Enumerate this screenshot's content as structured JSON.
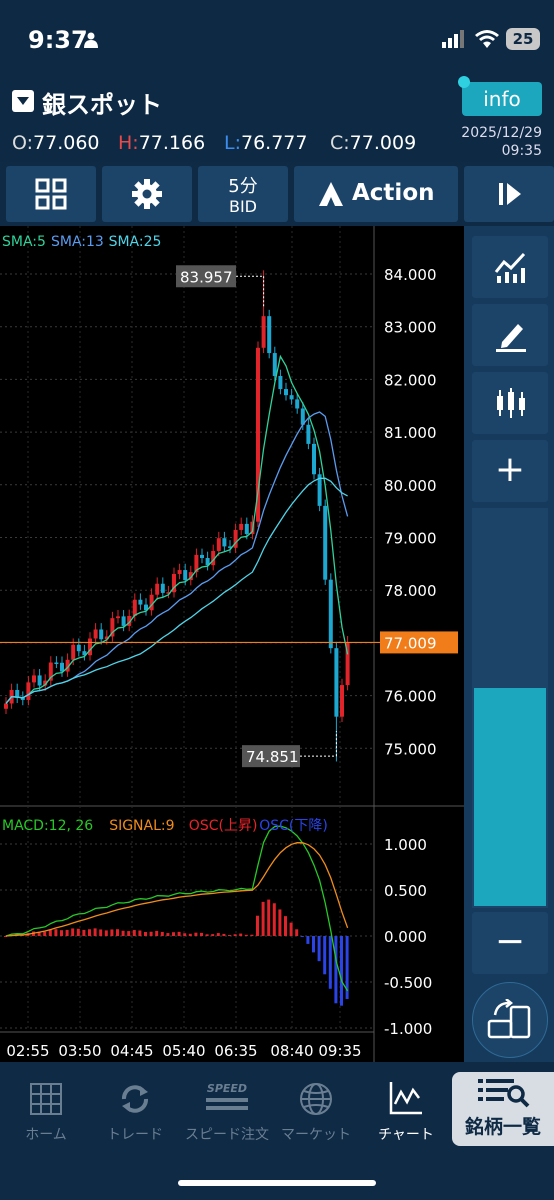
{
  "status_bar": {
    "time": "9:37",
    "battery": "25"
  },
  "header": {
    "symbol": "銀スポット",
    "info_label": "info",
    "ohlc": {
      "o_label": "O:",
      "o": "77.060",
      "h_label": "H:",
      "h": "77.166",
      "l_label": "L:",
      "l": "76.777",
      "c_label": "C:",
      "c": "77.009"
    },
    "date": "2025/12/29",
    "time": "09:35"
  },
  "toolbar": {
    "interval": "5分",
    "price_type": "BID",
    "action_label": "Action"
  },
  "chart": {
    "sma_labels": [
      {
        "text": "SMA:5",
        "color": "#2fd29a"
      },
      {
        "text": "SMA:13",
        "color": "#5a9cf0"
      },
      {
        "text": "SMA:25",
        "color": "#4fd4e8"
      }
    ],
    "price_axis": [
      "84.000",
      "83.000",
      "82.000",
      "81.000",
      "80.000",
      "79.000",
      "78.000",
      "77.000",
      "76.000",
      "75.000"
    ],
    "high_marker": "83.957",
    "low_marker": "74.851",
    "current_price": "77.009",
    "current_price_color": "#f07c1a",
    "macd_labels": [
      {
        "text": "MACD:12, 26",
        "color": "#26c926"
      },
      {
        "text": "SIGNAL:9",
        "color": "#f08c1a"
      },
      {
        "text": "OSC(上昇)",
        "color": "#e8242a"
      },
      {
        "text": "OSC(下降)",
        "color": "#2a44e8"
      }
    ],
    "macd_axis": [
      "1.000",
      "0.500",
      "0.000",
      "-0.500",
      "-1.000"
    ],
    "time_axis": [
      "02:55",
      "03:50",
      "04:45",
      "05:40",
      "06:35",
      "08:40",
      "09:35"
    ],
    "up_color": "#e0242a",
    "down_color": "#1ca8d0"
  },
  "right_panel": {
    "plus": "+",
    "minus": "−",
    "level_fraction": 0.55
  },
  "tabs": [
    {
      "label": "ホーム",
      "icon": "grid-icon"
    },
    {
      "label": "トレード",
      "icon": "refresh-icon"
    },
    {
      "label": "スピード注文",
      "icon": "speed-icon",
      "icon_text": "SPEED"
    },
    {
      "label": "マーケット",
      "icon": "globe-icon"
    },
    {
      "label": "チャート",
      "icon": "chart-icon"
    },
    {
      "label": "銘柄一覧",
      "icon": "search-list-icon"
    }
  ]
}
